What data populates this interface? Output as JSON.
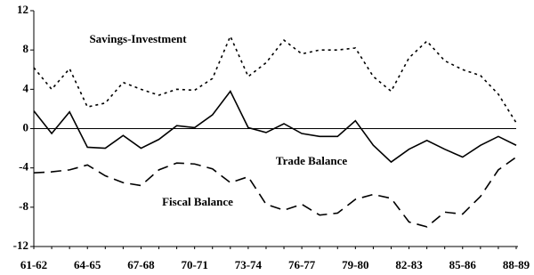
{
  "chart_data": {
    "type": "line",
    "categories": [
      "61-62",
      null,
      null,
      "64-65",
      null,
      null,
      "67-68",
      null,
      null,
      "70-71",
      null,
      null,
      "73-74",
      null,
      null,
      "76-77",
      null,
      null,
      "79-80",
      null,
      null,
      "82-83",
      null,
      null,
      "85-86",
      null,
      null,
      "88-89"
    ],
    "series": [
      {
        "name": "Savings-Investment",
        "color": "#000000",
        "dash": "dotted",
        "values": [
          6.2,
          4.0,
          6.1,
          2.2,
          2.6,
          4.7,
          4.0,
          3.4,
          4.0,
          3.9,
          5.1,
          9.4,
          5.3,
          6.7,
          9.0,
          7.6,
          8.0,
          8.0,
          8.2,
          5.3,
          3.8,
          7.2,
          8.9,
          6.9,
          6.0,
          5.4,
          3.5,
          0.6
        ]
      },
      {
        "name": "Trade Balance",
        "color": "#000000",
        "dash": "solid",
        "values": [
          1.8,
          -0.5,
          1.7,
          -1.9,
          -2.0,
          -0.7,
          -2.0,
          -1.1,
          0.3,
          0.1,
          1.4,
          3.8,
          0.1,
          -0.4,
          0.5,
          -0.5,
          -0.8,
          -0.8,
          0.8,
          -1.7,
          -3.4,
          -2.1,
          -1.2,
          -2.1,
          -2.9,
          -1.7,
          -0.8,
          -1.7
        ]
      },
      {
        "name": "Fiscal Balance",
        "color": "#000000",
        "dash": "dashed",
        "values": [
          -4.5,
          -4.4,
          -4.2,
          -3.7,
          -4.8,
          -5.5,
          -5.8,
          -4.2,
          -3.5,
          -3.6,
          -4.1,
          -5.5,
          -4.9,
          -7.7,
          -8.3,
          -7.7,
          -8.8,
          -8.6,
          -7.2,
          -6.7,
          -7.1,
          -9.5,
          -10.0,
          -8.5,
          -8.7,
          -6.9,
          -4.2,
          -2.9
        ]
      }
    ],
    "ylim": [
      -12,
      12
    ],
    "yticks": [
      -12,
      -8,
      -4,
      0,
      4,
      8,
      12
    ],
    "grid": false,
    "zero_line": true
  }
}
